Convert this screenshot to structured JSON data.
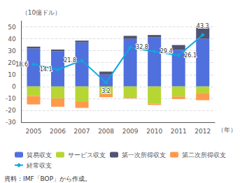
{
  "chart_data": {
    "type": "bar",
    "xlabel": "（年）",
    "ylabel": "（10億ドル）",
    "annotations": [
      "資料：IMF「BOP」から作成。"
    ],
    "categories": [
      "2005",
      "2006",
      "2007",
      "2008",
      "2009",
      "2010",
      "2011",
      "2012"
    ],
    "stacked": true,
    "series": [
      {
        "name": "貿易収支",
        "type": "bar",
        "values": [
          32.0,
          29.5,
          37.0,
          10.0,
          40.0,
          41.2,
          30.8,
          40.0
        ]
      },
      {
        "name": "サービス収支",
        "type": "bar",
        "values": [
          -8.0,
          -10.0,
          -13.0,
          -6.5,
          -9.5,
          -14.5,
          -8.5,
          -5.5
        ]
      },
      {
        "name": "第一次所得収支",
        "type": "bar",
        "values": [
          1.5,
          1.5,
          1.5,
          2.5,
          2.5,
          2.0,
          4.0,
          10.0
        ]
      },
      {
        "name": "第二次所得収支",
        "type": "bar",
        "values": [
          -7.0,
          -7.0,
          -5.0,
          -2.5,
          -0.5,
          -1.0,
          -2.0,
          -6.0
        ]
      },
      {
        "name": "経常収支",
        "type": "line",
        "marker": "diamond",
        "data_labels": true,
        "values": [
          18.6,
          14.1,
          21.8,
          3.2,
          32.8,
          29.4,
          26.1,
          43.3
        ]
      }
    ],
    "ylim": [
      -30,
      55
    ],
    "yticks": [
      -30,
      -20,
      -10,
      0,
      10,
      20,
      30,
      40,
      50
    ],
    "grid": true,
    "legend": "bottom"
  }
}
